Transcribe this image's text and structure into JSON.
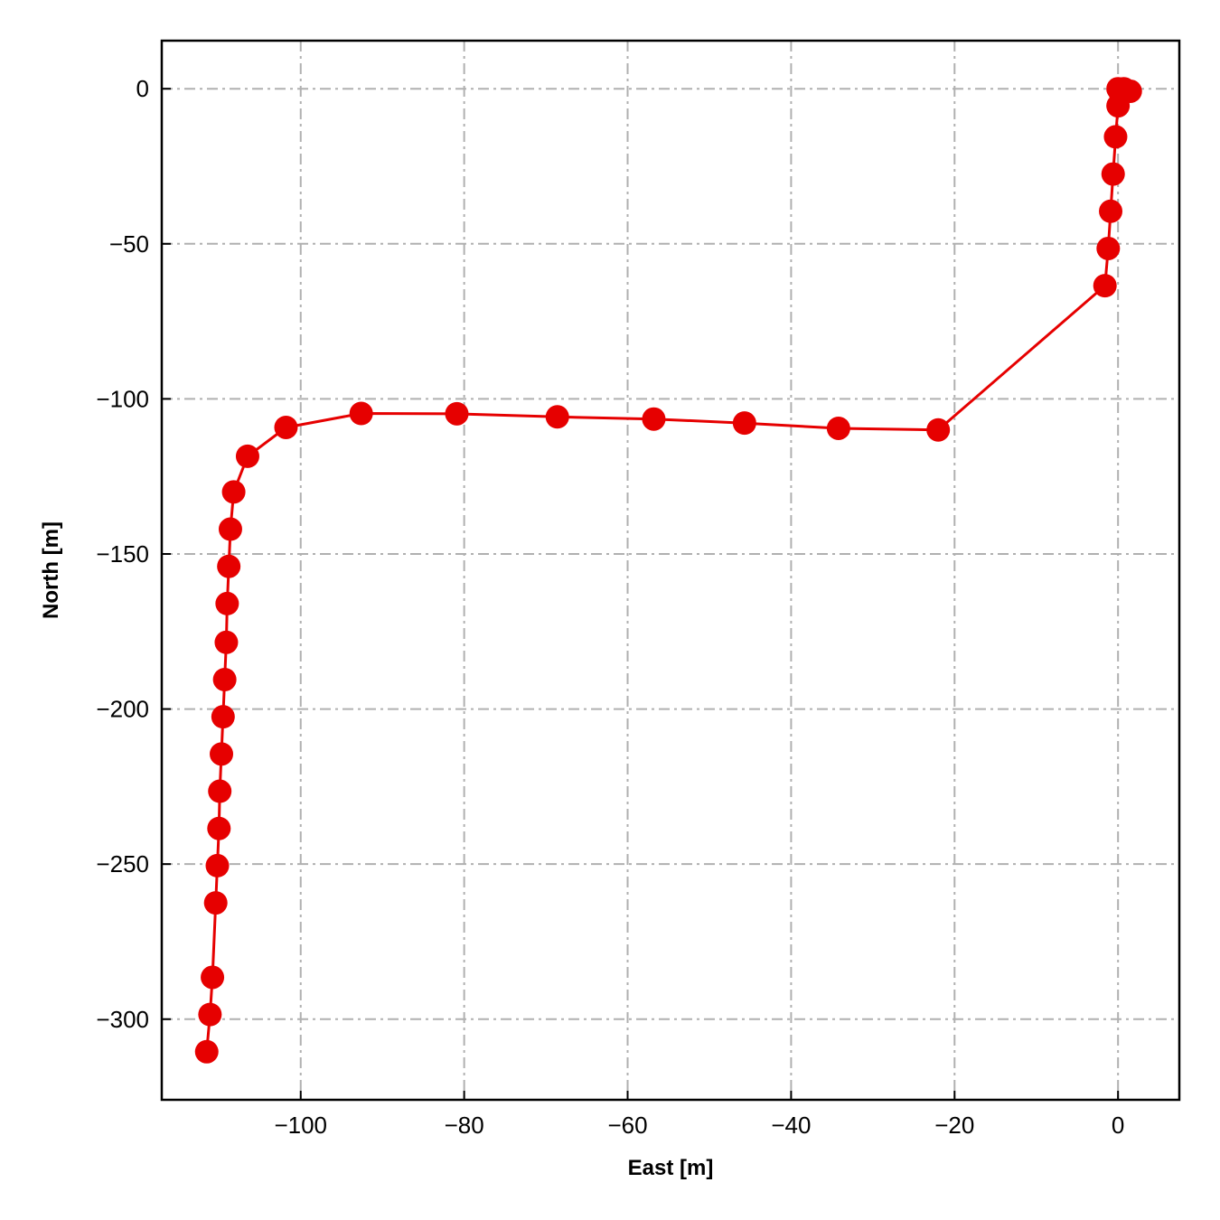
{
  "chart_data": {
    "type": "line",
    "xlabel": "East [m]",
    "ylabel": "North [m]",
    "xlim": [
      -117,
      7.5
    ],
    "ylim": [
      -326,
      15.5
    ],
    "xticks": [
      -100,
      -80,
      -60,
      -40,
      -20,
      0
    ],
    "yticks": [
      0,
      -50,
      -100,
      -150,
      -200,
      -250,
      -300
    ],
    "xtick_labels": [
      "−100",
      "−80",
      "−60",
      "−40",
      "−20",
      "0"
    ],
    "ytick_labels": [
      "0",
      "−50",
      "−100",
      "−150",
      "−200",
      "−250",
      "−300"
    ],
    "grid": true,
    "grid_style": "dashdot",
    "series": [
      {
        "color": "#e60000",
        "marker": "circle",
        "points": [
          [
            0.0,
            0.0
          ],
          [
            0.7,
            0.0
          ],
          [
            1.5,
            -0.8
          ],
          [
            0.3,
            -1.5
          ],
          [
            0.0,
            -5.5
          ],
          [
            -0.3,
            -15.5
          ],
          [
            -0.6,
            -27.5
          ],
          [
            -0.9,
            -39.5
          ],
          [
            -1.2,
            -51.5
          ],
          [
            -1.6,
            -63.5
          ],
          [
            -22.0,
            -110.0
          ],
          [
            -34.2,
            -109.5
          ],
          [
            -45.7,
            -107.8
          ],
          [
            -56.8,
            -106.5
          ],
          [
            -68.6,
            -105.8
          ],
          [
            -80.9,
            -104.8
          ],
          [
            -92.6,
            -104.7
          ],
          [
            -101.8,
            -109.2
          ],
          [
            -106.5,
            -118.5
          ],
          [
            -108.2,
            -130.0
          ],
          [
            -108.6,
            -142.0
          ],
          [
            -108.8,
            -154.0
          ],
          [
            -109.0,
            -166.0
          ],
          [
            -109.1,
            -178.5
          ],
          [
            -109.3,
            -190.5
          ],
          [
            -109.5,
            -202.5
          ],
          [
            -109.7,
            -214.5
          ],
          [
            -109.9,
            -226.5
          ],
          [
            -110.0,
            -238.5
          ],
          [
            -110.2,
            -250.5
          ],
          [
            -110.4,
            -262.5
          ],
          [
            -110.8,
            -286.5
          ],
          [
            -111.1,
            -298.5
          ],
          [
            -111.5,
            -310.5
          ]
        ]
      }
    ]
  }
}
